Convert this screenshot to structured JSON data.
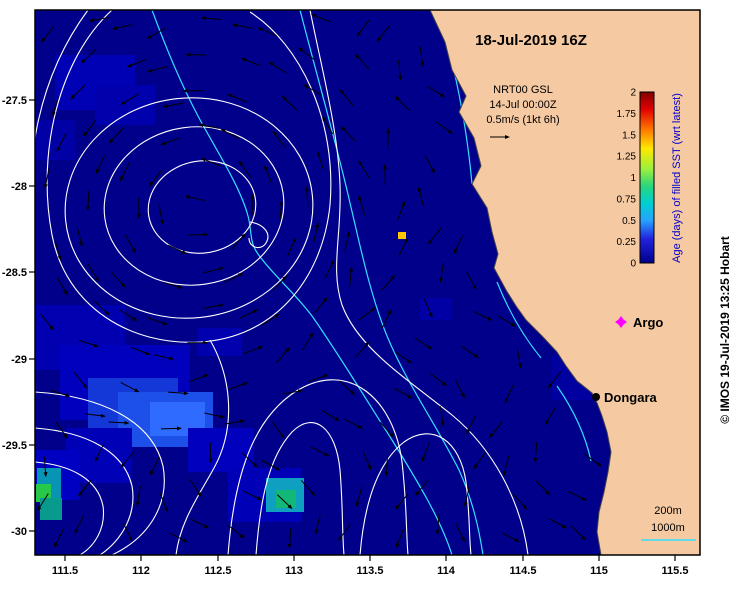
{
  "title": "18-Jul-2019 16Z",
  "info_box": {
    "line1": "NRT00 GSL",
    "line2": "14-Jul 00:00Z",
    "line3": "0.5m/s (1kt 6h)"
  },
  "colorbar": {
    "title": "Age (days) of filled SST (wrt latest)",
    "ticks": [
      "2",
      "1.75",
      "1.5",
      "1.25",
      "1",
      "0.75",
      "0.5",
      "0.25",
      "0"
    ]
  },
  "markers": {
    "argo": {
      "label": "Argo",
      "color": "#ff00ff"
    },
    "dongara": {
      "label": "Dongara",
      "color": "#000000"
    }
  },
  "depth_legend": {
    "d200": "200m",
    "d1000": "1000m"
  },
  "attribution": "© IMOS 19-Jul-2019 13:25 Hobart",
  "axes": {
    "x_ticks": [
      "111.5",
      "112",
      "112.5",
      "113",
      "113.5",
      "114",
      "114.5",
      "115",
      "115.5"
    ],
    "y_ticks": [
      "-27.5",
      "-28",
      "-28.5",
      "-29",
      "-29.5",
      "-30"
    ]
  },
  "map": {
    "ocean_color": "#00008b",
    "land_color": "#f5c9a2",
    "contour_color": "#ffffff",
    "bathymetry_color": "#33e0ff",
    "vector_color": "#000000",
    "colorbar_title_color": "#0000cc"
  }
}
